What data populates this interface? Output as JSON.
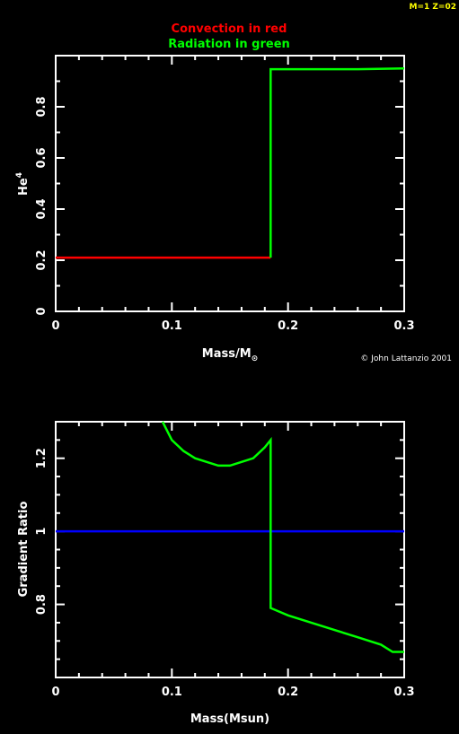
{
  "run_label": "M=1 Z=02",
  "legend": {
    "line1": "Convection in red",
    "line2": "Radiation in green",
    "color1": "#ff0000",
    "color2": "#00ff00"
  },
  "copyright": "© John Lattanzio 2001",
  "chart_data": [
    {
      "type": "line",
      "xlabel": "Mass/M",
      "xlabel_sub": "⊙",
      "ylabel": "He",
      "ylabel_sup": "4",
      "xlim": [
        0,
        0.3
      ],
      "ylim": [
        0,
        1.0
      ],
      "xticks": [
        "0",
        "0.1",
        "0.2",
        "0.3"
      ],
      "yticks": [
        "0",
        "0.2",
        "0.4",
        "0.6",
        "0.8"
      ],
      "grid": false,
      "series": [
        {
          "color": "#ff0000",
          "points": [
            [
              0.0,
              0.21
            ],
            [
              0.185,
              0.21
            ]
          ]
        },
        {
          "color": "#00ff00",
          "points": [
            [
              0.185,
              0.21
            ],
            [
              0.185,
              0.947
            ],
            [
              0.26,
              0.947
            ],
            [
              0.3,
              0.95
            ]
          ]
        }
      ]
    },
    {
      "type": "line",
      "xlabel": "Mass(Msun)",
      "ylabel": "Gradient Ratio",
      "xlim": [
        0,
        0.3
      ],
      "ylim": [
        0.6,
        1.3
      ],
      "xticks": [
        "0",
        "0.1",
        "0.2",
        "0.3"
      ],
      "yticks": [
        "0.8",
        "1",
        "1.2"
      ],
      "grid": false,
      "series": [
        {
          "color": "#0000ff",
          "points": [
            [
              0.0,
              1.0
            ],
            [
              0.3,
              1.0
            ]
          ]
        },
        {
          "color": "#00ff00",
          "points": [
            [
              0.092,
              1.3
            ],
            [
              0.1,
              1.25
            ],
            [
              0.11,
              1.22
            ],
            [
              0.12,
              1.2
            ],
            [
              0.13,
              1.19
            ],
            [
              0.14,
              1.18
            ],
            [
              0.15,
              1.18
            ],
            [
              0.16,
              1.19
            ],
            [
              0.17,
              1.2
            ],
            [
              0.18,
              1.23
            ],
            [
              0.185,
              1.25
            ],
            [
              0.185,
              1.12
            ],
            [
              0.185,
              0.79
            ],
            [
              0.2,
              0.77
            ],
            [
              0.22,
              0.75
            ],
            [
              0.24,
              0.73
            ],
            [
              0.26,
              0.71
            ],
            [
              0.28,
              0.69
            ],
            [
              0.29,
              0.67
            ],
            [
              0.3,
              0.67
            ]
          ]
        }
      ]
    }
  ]
}
